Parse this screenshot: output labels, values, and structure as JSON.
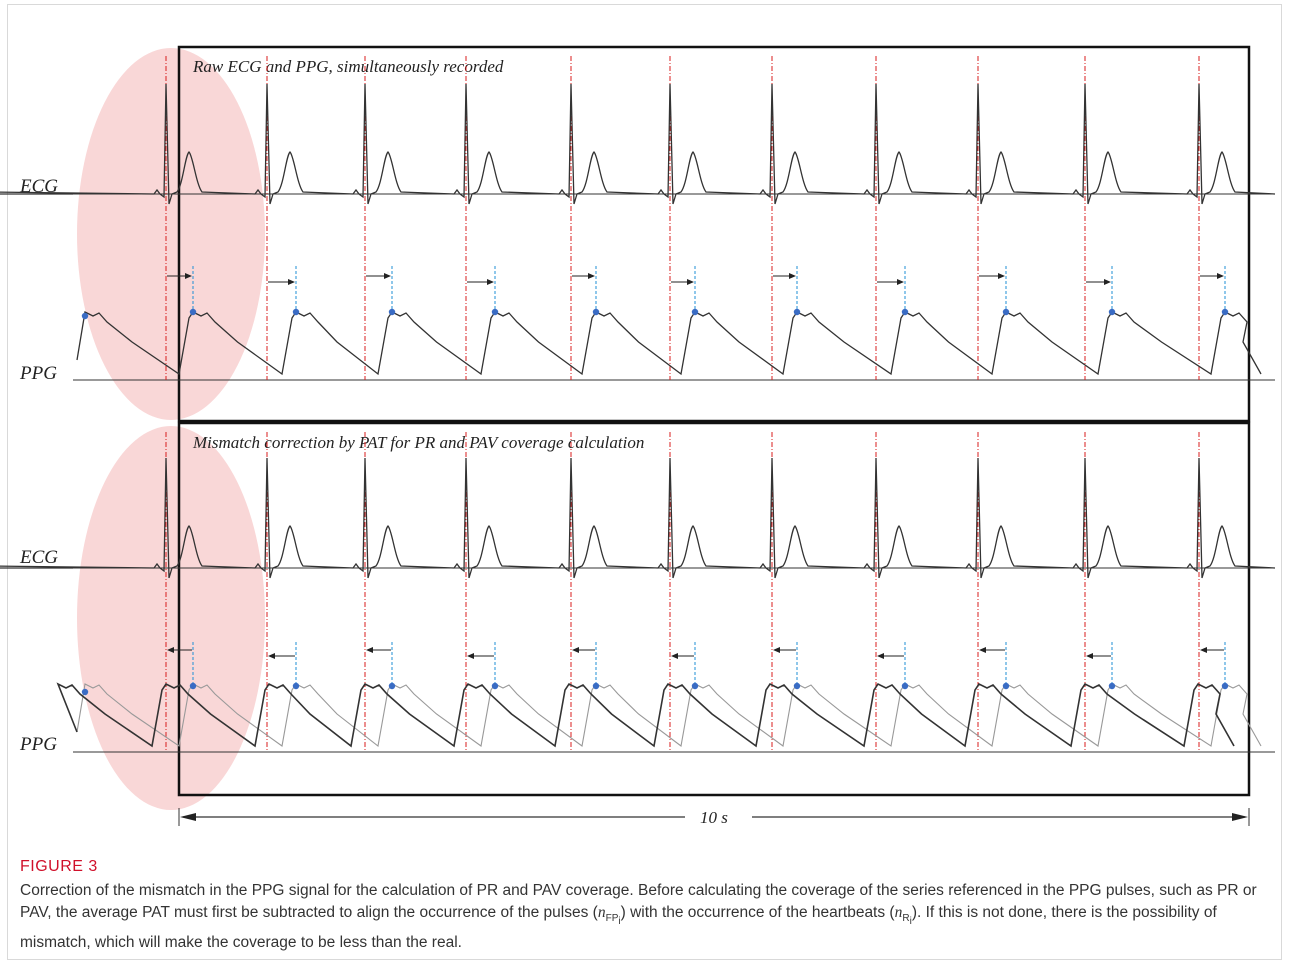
{
  "figure": {
    "panel_top_title": "Raw ECG and PPG, simultaneously recorded",
    "panel_bottom_title": "Mismatch correction by PAT for PR and PAV coverage calculation",
    "ecg_label": "ECG",
    "ppg_label": "PPG",
    "duration_label": "10 s",
    "colors": {
      "highlight": "#f9d7d7",
      "r_peak_line": "#d81e1e",
      "pulse_line": "#1f8fd6",
      "pulse_dot": "#3a6cc4",
      "signal": "#333333",
      "signal_light": "#999999",
      "frame": "#111111"
    }
  },
  "caption": {
    "label": "FIGURE 3",
    "text_part1": "Correction of the mismatch in the PPG signal for the calculation of PR and PAV coverage. Before calculating the coverage of the series referenced in the PPG pulses, such as PR or PAV, the average PAT must first be subtracted to align the occurrence of the pulses (",
    "n1": "n",
    "sub1": "FP",
    "subsub1": "i",
    "text_part2": ") with the occurrence of the heartbeats (",
    "n2": "n",
    "sub2": "R",
    "subsub2": "i",
    "text_part3": "). If this is not done, there is the possibility of mismatch, which will make the coverage to be less than the real."
  }
}
